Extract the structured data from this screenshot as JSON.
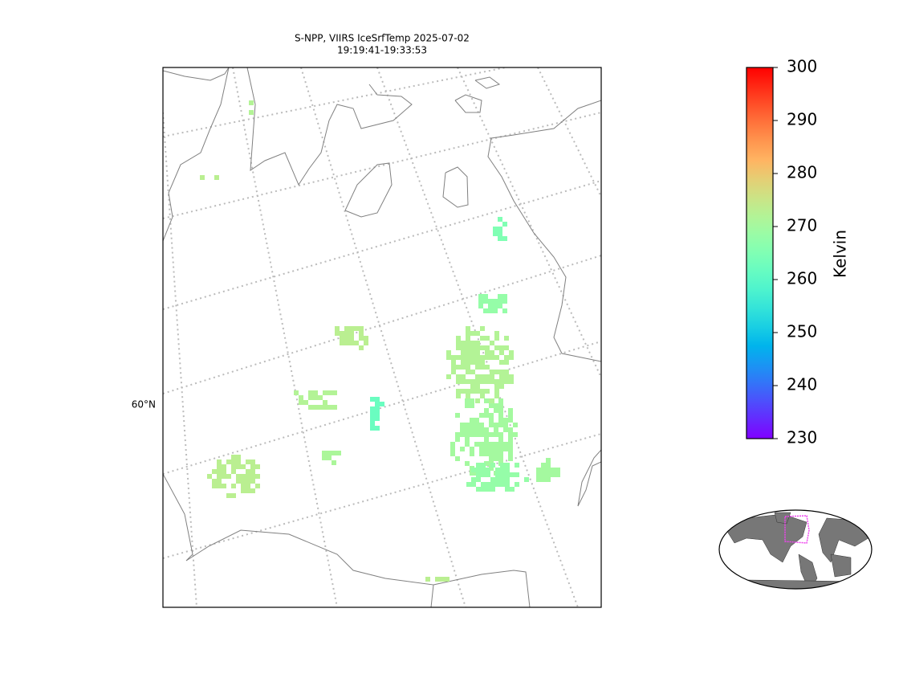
{
  "map": {
    "title": [
      "S-NPP, VIIRS IceSrfTemp 2025-07-02",
      "19:19:41-19:33:53"
    ],
    "lat_label": "60°N",
    "colormap": "rainbow",
    "colorbar": {
      "label": "Kelvin",
      "lim": [
        230,
        300
      ],
      "ticks": [
        230,
        240,
        250,
        260,
        270,
        280,
        290,
        300
      ]
    },
    "pixel_values": [
      273,
      272,
      273,
      272,
      270,
      268,
      268,
      265,
      262,
      271,
      273,
      270,
      273,
      272
    ]
  }
}
